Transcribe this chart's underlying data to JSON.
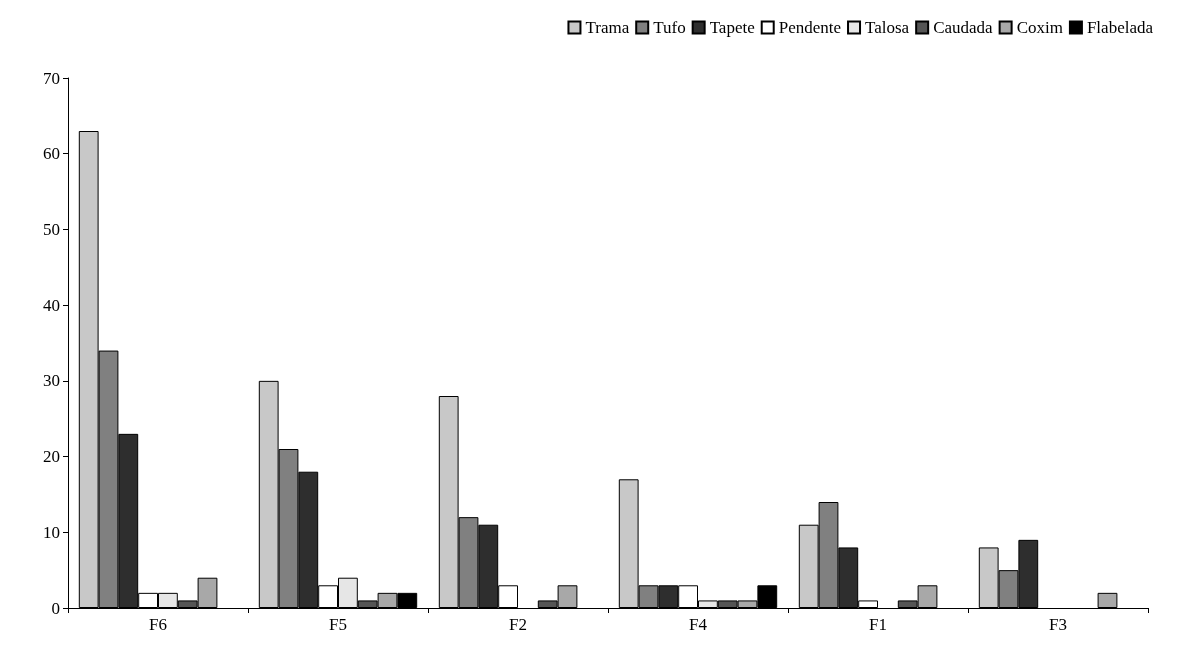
{
  "chart_data": {
    "type": "bar",
    "categories": [
      "F6",
      "F5",
      "F2",
      "F4",
      "F1",
      "F3"
    ],
    "series": [
      {
        "name": "Trama",
        "color": "#c8c8c8",
        "values": [
          63,
          30,
          28,
          17,
          11,
          8
        ]
      },
      {
        "name": "Tufo",
        "color": "#808080",
        "values": [
          34,
          21,
          12,
          3,
          14,
          5
        ]
      },
      {
        "name": "Tapete",
        "color": "#2e2e2e",
        "values": [
          23,
          18,
          11,
          3,
          8,
          9
        ]
      },
      {
        "name": "Pendente",
        "color": "#ffffff",
        "values": [
          2,
          3,
          3,
          3,
          1,
          null
        ]
      },
      {
        "name": "Talosa",
        "color": "#e6e6e6",
        "values": [
          2,
          4,
          null,
          1,
          null,
          null
        ]
      },
      {
        "name": "Caudada",
        "color": "#555555",
        "values": [
          1,
          1,
          1,
          1,
          1,
          null
        ]
      },
      {
        "name": "Coxim",
        "color": "#a8a8a8",
        "values": [
          4,
          2,
          3,
          1,
          3,
          2
        ]
      },
      {
        "name": "Flabelada",
        "color": "#000000",
        "values": [
          null,
          2,
          null,
          3,
          null,
          null
        ]
      }
    ],
    "ylim": [
      0,
      70
    ],
    "yticks": [
      0,
      10,
      20,
      30,
      40,
      50,
      60,
      70
    ],
    "grid": false,
    "legend": "top right"
  }
}
